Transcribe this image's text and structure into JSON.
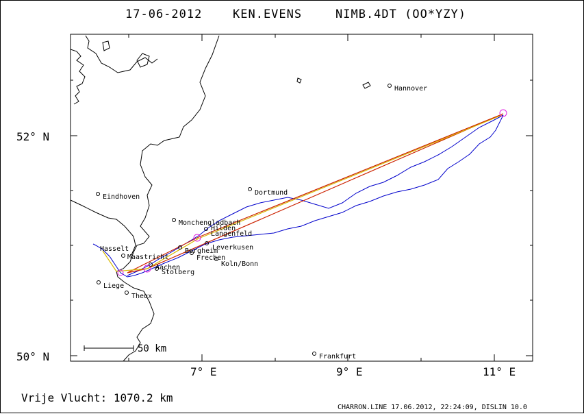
{
  "header": {
    "date": "17-06-2012",
    "pilot": "KEN.EVENS",
    "glider": "NIMB.4DT (OO*YZY)"
  },
  "axes": {
    "y_labels": [
      "52° N",
      "50° N"
    ],
    "x_labels": [
      "7° E",
      "9° E",
      "11° E"
    ]
  },
  "cities": [
    {
      "name": "Hannover"
    },
    {
      "name": "Eindhoven"
    },
    {
      "name": "Dortmund"
    },
    {
      "name": "Monchengladbach"
    },
    {
      "name": "Hilden"
    },
    {
      "name": "Langenfeld"
    },
    {
      "name": "Hasselt"
    },
    {
      "name": "Leverkusen"
    },
    {
      "name": "Maastricht"
    },
    {
      "name": "Bergheim"
    },
    {
      "name": "Frechen"
    },
    {
      "name": "Aachen"
    },
    {
      "name": "Koln/Bonn"
    },
    {
      "name": "Stolberg"
    },
    {
      "name": "Liege"
    },
    {
      "name": "Theux"
    },
    {
      "name": "Frankfurt"
    }
  ],
  "scale_bar": {
    "label": "50 km"
  },
  "footer": {
    "distance": "Vrije Vlucht: 1070.2 km",
    "credit": "CHARRON.LINE 17.06.2012, 22:24:09, DISLIN 10.0"
  },
  "colors": {
    "track": "#0000cc",
    "task_line_red": "#cc2200",
    "task_line_yellow": "#d8b800",
    "turnpoint": "#e020e0",
    "border": "#000000"
  }
}
